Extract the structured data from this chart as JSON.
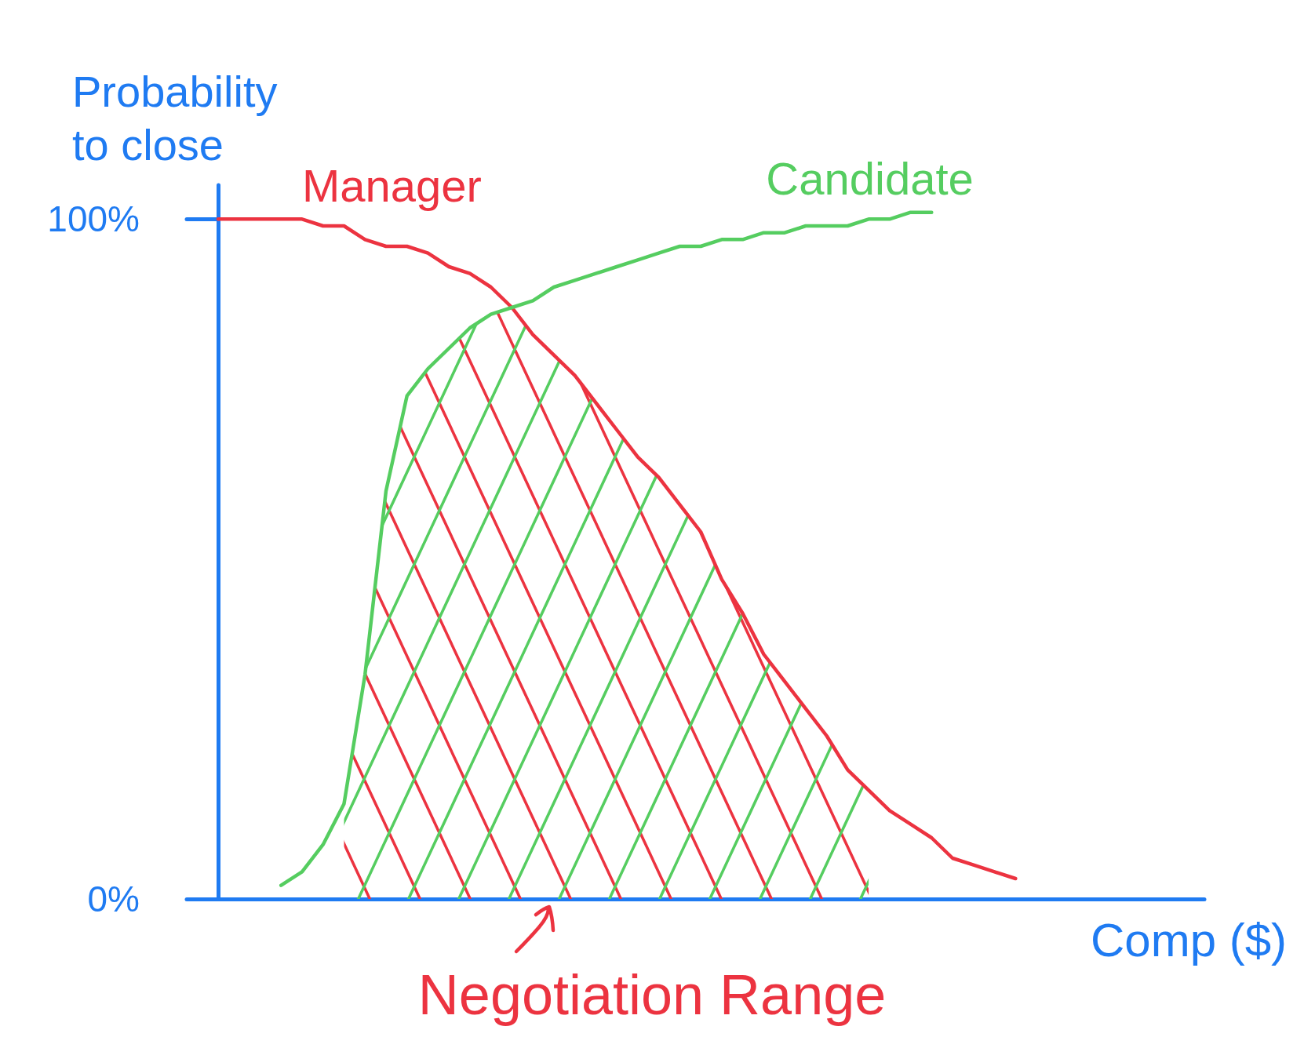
{
  "chart_data": {
    "type": "line",
    "ylabel": "Probability to close",
    "xlabel": "Comp ($)",
    "annotations": [
      "Negotiation Range"
    ],
    "categories": [
      null,
      null,
      null,
      null,
      null,
      null,
      null,
      null,
      null,
      null,
      null,
      null,
      null,
      null,
      null,
      null,
      null,
      null,
      null,
      null,
      null,
      null,
      null,
      null,
      null,
      null,
      null,
      null,
      null,
      null,
      null,
      null,
      null,
      null,
      null,
      null,
      null,
      null,
      null,
      null,
      null,
      null,
      null,
      null,
      null,
      null,
      null,
      null
    ],
    "series": [
      {
        "name": "Manager",
        "color": "#ec3340",
        "values": [
          100,
          100,
          100,
          100,
          100,
          99,
          99,
          97,
          96,
          96,
          95,
          93,
          92,
          90,
          87,
          83,
          80,
          77,
          73,
          69,
          65,
          62,
          58,
          54,
          47,
          42,
          36,
          32,
          28,
          24,
          19,
          16,
          13,
          11,
          9,
          6,
          5,
          4,
          3,
          null,
          null,
          null,
          null,
          null,
          null,
          null,
          null,
          null
        ]
      },
      {
        "name": "Candidate",
        "color": "#55cd60",
        "values": [
          null,
          null,
          null,
          2,
          4,
          8,
          14,
          33,
          60,
          74,
          78,
          81,
          84,
          86,
          87,
          88,
          90,
          91,
          92,
          93,
          94,
          95,
          96,
          96,
          97,
          97,
          98,
          98,
          99,
          99,
          99,
          100,
          100,
          101,
          101,
          null,
          null,
          null,
          null,
          null,
          null,
          null,
          null,
          null,
          null,
          null,
          null,
          null
        ]
      },
      {
        "type": "area",
        "color": "#55cd60",
        "values": [
          null,
          null,
          null,
          null,
          null,
          null,
          14,
          33,
          60,
          74,
          78,
          81,
          84,
          86,
          87,
          83,
          80,
          77,
          73,
          69,
          65,
          62,
          58,
          54,
          47,
          42,
          36,
          32,
          28,
          24,
          19,
          16,
          null,
          null,
          null,
          null,
          null,
          null,
          null,
          null,
          null,
          null,
          null,
          null,
          null,
          null,
          null,
          null
        ]
      }
    ],
    "ylim": [
      0,
      105
    ],
    "yticks": [
      {
        "value": 0,
        "label": "0%"
      },
      {
        "value": 100,
        "label": "100%"
      }
    ],
    "tick_labels": "y",
    "marker": "none"
  }
}
